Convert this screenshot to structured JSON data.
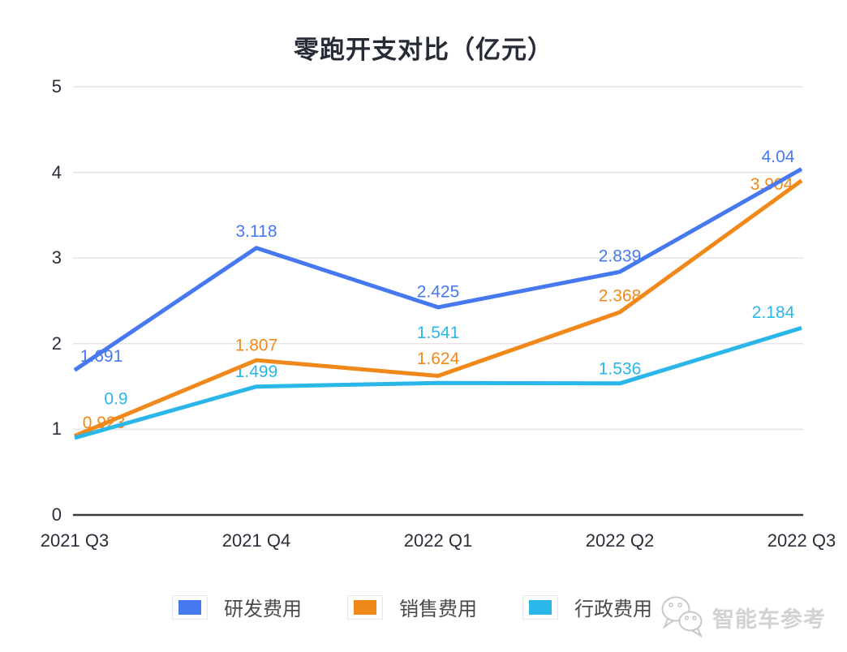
{
  "chart_data": {
    "type": "line",
    "title": "零跑开支对比（亿元）",
    "categories": [
      "2021 Q3",
      "2021 Q4",
      "2022 Q1",
      "2022 Q2",
      "2022 Q3"
    ],
    "series": [
      {
        "name": "研发费用",
        "color": "#4678f0",
        "values": [
          1.691,
          3.118,
          2.425,
          2.839,
          4.04
        ]
      },
      {
        "name": "销售费用",
        "color": "#f0891a",
        "values": [
          0.923,
          1.807,
          1.624,
          2.368,
          3.904
        ]
      },
      {
        "name": "行政费用",
        "color": "#2bb6e9",
        "values": [
          0.9,
          1.499,
          1.541,
          1.536,
          2.184
        ]
      }
    ],
    "yticks": [
      5,
      4,
      3,
      2,
      1,
      0
    ],
    "ylim": [
      0,
      5
    ],
    "grid": true,
    "legend_position": "bottom",
    "label_offsets": [
      [
        [
          33,
          -18
        ],
        [
          0,
          -21
        ],
        [
          0,
          -20
        ],
        [
          0,
          -20
        ],
        [
          -29,
          -16
        ]
      ],
      [
        [
          36,
          -17
        ],
        [
          0,
          -19
        ],
        [
          0,
          -22
        ],
        [
          0,
          -21
        ],
        [
          -37,
          4
        ]
      ],
      [
        [
          51,
          -49
        ],
        [
          0,
          -19
        ],
        [
          0,
          -63
        ],
        [
          0,
          -19
        ],
        [
          -35,
          -20
        ]
      ]
    ],
    "colors": {
      "grid": "#e4e4e4",
      "axis": "#3d3d3d",
      "tick_text": "#2a2e38",
      "legend_text": "#4a4a4a"
    }
  },
  "watermark": {
    "text": "智能车参考",
    "icon": "wechat-icon"
  }
}
